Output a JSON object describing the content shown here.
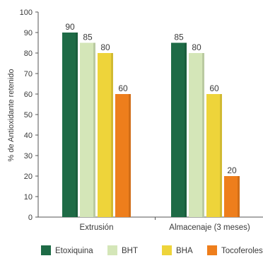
{
  "chart_data": {
    "type": "bar",
    "title": "",
    "xlabel": "",
    "ylabel": "% de Antioxidante retenido",
    "ylim": [
      0,
      100
    ],
    "yticks": [
      0,
      10,
      20,
      30,
      40,
      50,
      60,
      70,
      80,
      90,
      100
    ],
    "grid": false,
    "legend_position": "bottom",
    "categories": [
      "Extrusión",
      "Almacenaje (3 meses)"
    ],
    "series": [
      {
        "name": "Etoxiquina",
        "color": "#1e6b46",
        "values": [
          90,
          85
        ]
      },
      {
        "name": "BHT",
        "color": "#d4e6b8",
        "values": [
          85,
          80
        ]
      },
      {
        "name": "BHA",
        "color": "#eed43a",
        "values": [
          80,
          60
        ]
      },
      {
        "name": "Tocoferoles",
        "color": "#ee7e1c",
        "values": [
          60,
          20
        ]
      }
    ],
    "data_labels": true
  }
}
